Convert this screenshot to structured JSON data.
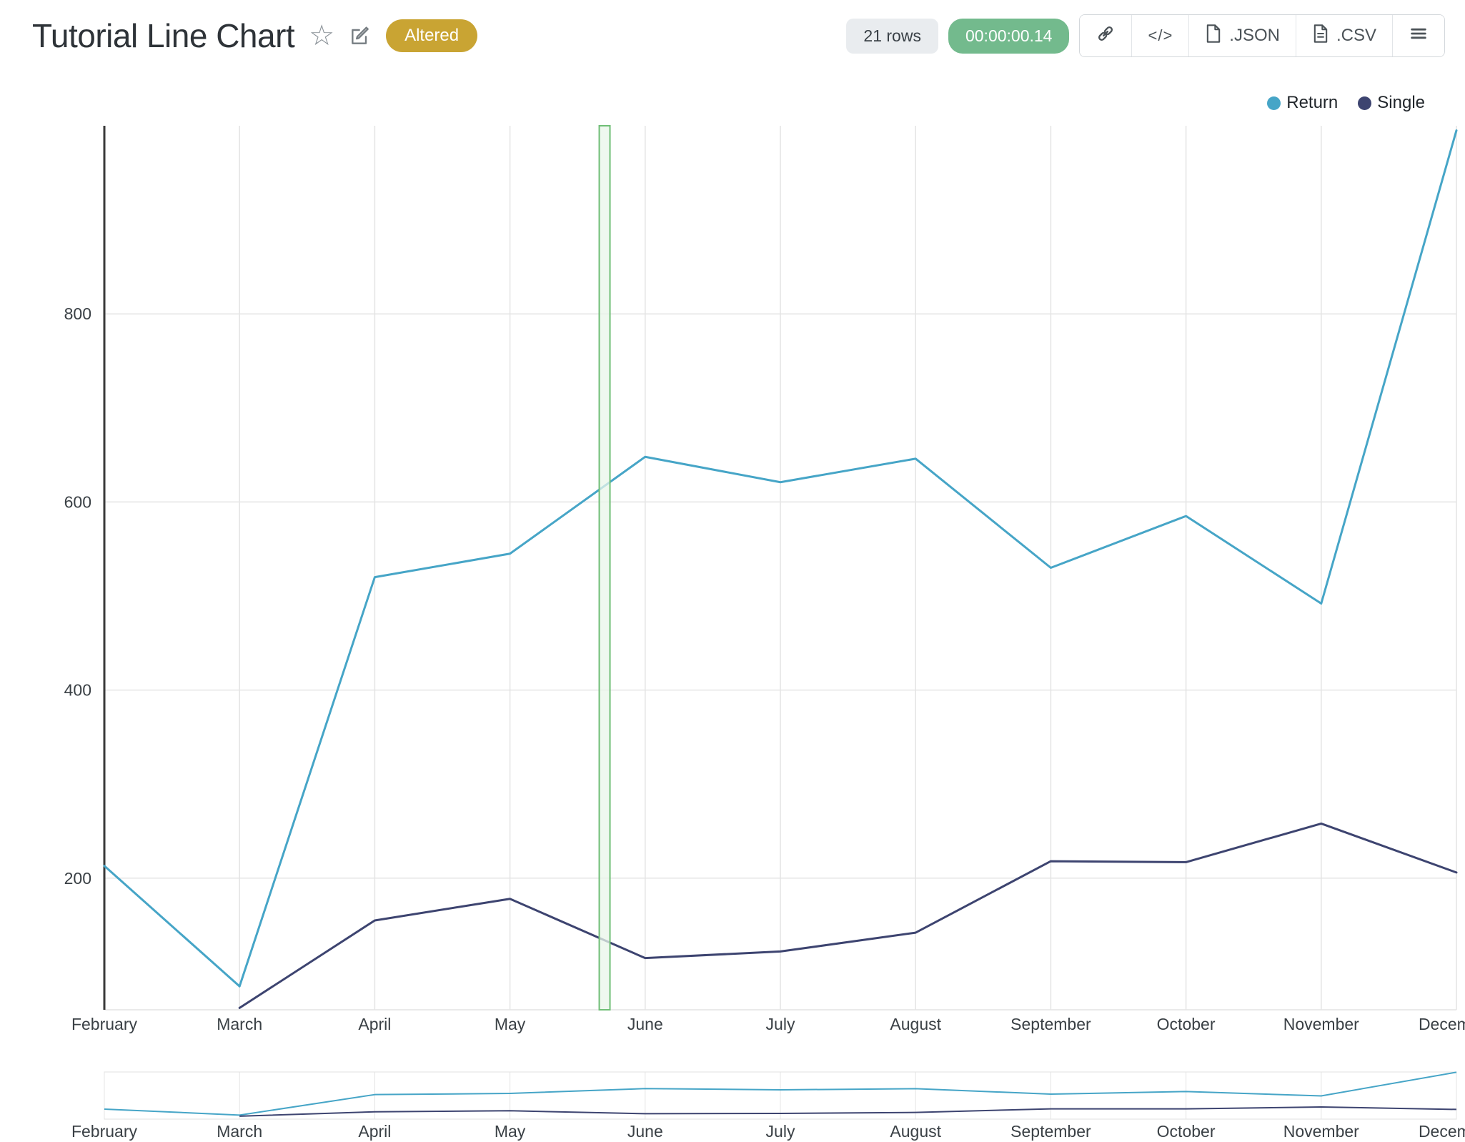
{
  "header": {
    "title": "Tutorial Line Chart",
    "altered_badge": "Altered",
    "rows_count": "21 rows",
    "runtime": "00:00:00.14",
    "export_json_label": ".JSON",
    "export_csv_label": ".CSV"
  },
  "icons": {
    "star": "☆",
    "code": "</>"
  },
  "colors": {
    "grid": "#e4e4e4",
    "axis": "#3a3a3a",
    "altered_bg": "#c9a433",
    "runtime_bg": "#73ba8d",
    "rows_bg": "#e9ecef"
  },
  "chart_data": {
    "type": "line",
    "x": [
      "February",
      "March",
      "April",
      "May",
      "June",
      "July",
      "August",
      "September",
      "October",
      "November",
      "December"
    ],
    "series": [
      {
        "name": "Return",
        "color": "#46a5c7",
        "values": [
          213,
          85,
          520,
          545,
          648,
          621,
          646,
          530,
          585,
          492,
          995
        ]
      },
      {
        "name": "Single",
        "color": "#3d4470",
        "values": [
          null,
          62,
          155,
          178,
          115,
          122,
          142,
          218,
          217,
          258,
          206
        ]
      }
    ],
    "yticks": [
      200,
      400,
      600,
      800
    ],
    "ylim": [
      60,
      1000
    ],
    "grid": true,
    "legend_position": "top-right",
    "legend_labels": [
      "Return",
      "Single"
    ],
    "selection_band": {
      "x_index": 3.7,
      "fill": "#e9f5ea",
      "stroke": "#6fbe76"
    },
    "rangeslider": true
  }
}
